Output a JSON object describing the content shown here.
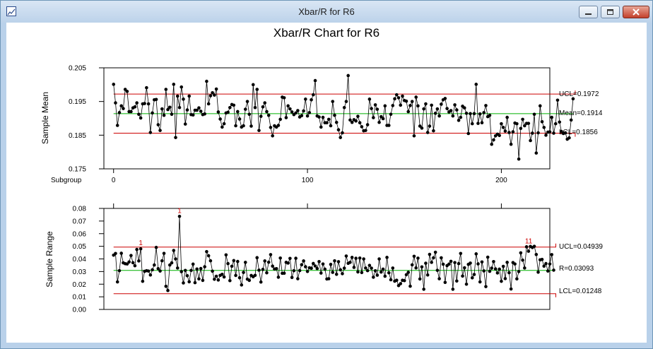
{
  "window": {
    "title": "Xbar/R for R6",
    "buttons": {
      "minimize": "minimize",
      "maximize": "maximize",
      "close": "close"
    }
  },
  "chart_data": [
    {
      "type": "line",
      "title": "Xbar/R Chart for R6",
      "xlabel": "Subgroup",
      "ylabel": "Sample Mean",
      "xlim": [
        -5,
        225
      ],
      "ylim": [
        0.175,
        0.205
      ],
      "y_ticks": [
        "0.205",
        "0.195",
        "0.185",
        "0.175"
      ],
      "x_ticks": [
        "0",
        "100",
        "200"
      ],
      "center": 0.1914,
      "ucl": 0.1972,
      "lcl": 0.1856,
      "labels": {
        "ucl": "UCL=0.1972",
        "center": "Mean=0.1914",
        "lcl": "LCL=0.1856"
      },
      "grid": false,
      "series": [
        {
          "values": [
            0.2001,
            0.1946,
            0.1879,
            0.1917,
            0.1937,
            0.1929,
            0.1986,
            0.198,
            0.192,
            0.192,
            0.1931,
            0.1934,
            0.1946,
            0.1912,
            0.1901,
            0.1943,
            0.1944,
            0.1991,
            0.1943,
            0.1858,
            0.1916,
            0.1955,
            0.1956,
            0.1881,
            0.1864,
            0.1928,
            0.1909,
            0.1986,
            0.1926,
            0.1933,
            0.1912,
            0.2001,
            0.1843,
            0.1966,
            0.1932,
            0.1993,
            0.1957,
            0.1883,
            0.1925,
            0.1966,
            0.1911,
            0.191,
            0.1924,
            0.1924,
            0.1931,
            0.1921,
            0.1911,
            0.1913,
            0.201,
            0.1943,
            0.1967,
            0.1976,
            0.1969,
            0.1987,
            0.1919,
            0.1898,
            0.1874,
            0.1884,
            0.1916,
            0.1918,
            0.1932,
            0.1941,
            0.1939,
            0.1878,
            0.192,
            0.1898,
            0.1874,
            0.1878,
            0.1927,
            0.195,
            0.1912,
            0.1877,
            0.2,
            0.1932,
            0.1986,
            0.1864,
            0.1906,
            0.1934,
            0.1946,
            0.192,
            0.1909,
            0.1873,
            0.1848,
            0.1878,
            0.1874,
            0.1879,
            0.1897,
            0.1963,
            0.1961,
            0.1902,
            0.1937,
            0.1928,
            0.1919,
            0.1911,
            0.1916,
            0.1923,
            0.1904,
            0.1908,
            0.1922,
            0.1957,
            0.1907,
            0.1917,
            0.1955,
            0.197,
            0.2012,
            0.1907,
            0.1904,
            0.1874,
            0.1903,
            0.1887,
            0.1887,
            0.1897,
            0.1878,
            0.195,
            0.1909,
            0.1888,
            0.1866,
            0.1843,
            0.1857,
            0.1932,
            0.195,
            0.2027,
            0.1895,
            0.1888,
            0.1896,
            0.1892,
            0.1906,
            0.1887,
            0.1875,
            0.1863,
            0.1864,
            0.1881,
            0.1957,
            0.1929,
            0.1902,
            0.194,
            0.1927,
            0.1888,
            0.1905,
            0.1899,
            0.1937,
            0.1879,
            0.1879,
            0.1912,
            0.1938,
            0.1958,
            0.197,
            0.1961,
            0.1939,
            0.1966,
            0.1953,
            0.1951,
            0.192,
            0.1938,
            0.195,
            0.1848,
            0.1963,
            0.1937,
            0.1877,
            0.1871,
            0.1928,
            0.1943,
            0.1858,
            0.1877,
            0.1939,
            0.1863,
            0.1915,
            0.1928,
            0.1907,
            0.1942,
            0.1955,
            0.1959,
            0.1929,
            0.1919,
            0.1923,
            0.1907,
            0.194,
            0.1925,
            0.1894,
            0.1903,
            0.1936,
            0.1931,
            0.1915,
            0.1855,
            0.1914,
            0.1884,
            0.1914,
            0.2001,
            0.1885,
            0.1913,
            0.1887,
            0.1917,
            0.1938,
            0.1905,
            0.1909,
            0.1823,
            0.1836,
            0.1848,
            0.1853,
            0.1849,
            0.1884,
            0.1873,
            0.1862,
            0.1903,
            0.1858,
            0.1823,
            0.186,
            0.1886,
            0.1884,
            0.1779,
            0.187,
            0.1897,
            0.1878,
            0.1885,
            0.1885,
            0.1834,
            0.1856,
            0.1912,
            0.1797,
            0.1857,
            0.1937,
            0.189,
            0.1873,
            0.185,
            0.1859,
            0.186,
            0.1903,
            0.1856,
            0.1884,
            0.1954,
            0.1889,
            0.1861,
            0.1855,
            0.1857,
            0.1838,
            0.1842,
            0.1895,
            0.1958
          ]
        }
      ]
    },
    {
      "type": "line",
      "xlabel": "",
      "ylabel": "Sample Range",
      "xlim": [
        -5,
        225
      ],
      "ylim": [
        0,
        0.08
      ],
      "y_ticks": [
        "0.08",
        "0.07",
        "0.06",
        "0.05",
        "0.04",
        "0.03",
        "0.02",
        "0.01",
        "0.00"
      ],
      "center": 0.03093,
      "ucl": 0.04939,
      "lcl": 0.01248,
      "labels": {
        "ucl": "UCL=0.04939",
        "center": "R=0.03093",
        "lcl": "LCL=0.01248"
      },
      "out_of_control_marks": [
        "1",
        "1",
        "11"
      ],
      "grid": false,
      "series": [
        {
          "values": [
            0.043,
            0.0443,
            0.0218,
            0.0307,
            0.0445,
            0.0369,
            0.0362,
            0.036,
            0.0376,
            0.0427,
            0.037,
            0.0346,
            0.0475,
            0.0384,
            0.048,
            0.0223,
            0.0302,
            0.0307,
            0.0304,
            0.0273,
            0.0314,
            0.0352,
            0.0491,
            0.0323,
            0.0304,
            0.0385,
            0.0444,
            0.0183,
            0.015,
            0.0352,
            0.0369,
            0.0467,
            0.04,
            0.0328,
            0.0737,
            0.0299,
            0.021,
            0.0309,
            0.0267,
            0.0219,
            0.0309,
            0.0359,
            0.0212,
            0.032,
            0.0242,
            0.0324,
            0.023,
            0.0338,
            0.0458,
            0.0425,
            0.0385,
            0.0303,
            0.0239,
            0.0263,
            0.0233,
            0.027,
            0.0278,
            0.0257,
            0.0432,
            0.0363,
            0.0228,
            0.0342,
            0.0387,
            0.0269,
            0.038,
            0.0251,
            0.0194,
            0.0293,
            0.0373,
            0.024,
            0.023,
            0.0269,
            0.0259,
            0.027,
            0.041,
            0.0311,
            0.0217,
            0.0317,
            0.0384,
            0.029,
            0.0374,
            0.0434,
            0.0343,
            0.032,
            0.0323,
            0.0255,
            0.0407,
            0.0286,
            0.0287,
            0.0373,
            0.0367,
            0.0404,
            0.0253,
            0.0307,
            0.0405,
            0.0243,
            0.0308,
            0.0354,
            0.0384,
            0.0338,
            0.0301,
            0.033,
            0.0326,
            0.0364,
            0.0344,
            0.0324,
            0.0379,
            0.0288,
            0.036,
            0.0319,
            0.0241,
            0.0243,
            0.0357,
            0.0294,
            0.0385,
            0.0278,
            0.0378,
            0.0314,
            0.0283,
            0.0327,
            0.0423,
            0.0365,
            0.0373,
            0.0412,
            0.0333,
            0.0405,
            0.0297,
            0.0407,
            0.0292,
            0.04,
            0.0328,
            0.0307,
            0.0349,
            0.0327,
            0.0255,
            0.0306,
            0.0271,
            0.04,
            0.0296,
            0.0319,
            0.0263,
            0.0412,
            0.029,
            0.0235,
            0.0328,
            0.0224,
            0.0231,
            0.0189,
            0.0204,
            0.0231,
            0.0228,
            0.0275,
            0.0294,
            0.0184,
            0.0353,
            0.0421,
            0.0329,
            0.0406,
            0.0241,
            0.0337,
            0.016,
            0.0366,
            0.0273,
            0.0436,
            0.0373,
            0.0409,
            0.0453,
            0.031,
            0.0243,
            0.0409,
            0.0358,
            0.0214,
            0.0347,
            0.0359,
            0.0381,
            0.016,
            0.0371,
            0.0225,
            0.0363,
            0.0443,
            0.0264,
            0.033,
            0.02,
            0.0357,
            0.0367,
            0.025,
            0.0277,
            0.044,
            0.0361,
            0.0218,
            0.0376,
            0.0305,
            0.0181,
            0.0414,
            0.0302,
            0.0327,
            0.0379,
            0.0321,
            0.0289,
            0.0319,
            0.0223,
            0.0341,
            0.0244,
            0.0373,
            0.0291,
            0.0162,
            0.0371,
            0.036,
            0.0242,
            0.03,
            0.0448,
            0.039,
            0.0328,
            0.0496,
            0.0461,
            0.0499,
            0.049,
            0.05,
            0.0435,
            0.0295,
            0.0393,
            0.0396,
            0.0343,
            0.0363,
            0.0304,
            0.036,
            0.0434,
            0.0311
          ]
        }
      ]
    }
  ]
}
